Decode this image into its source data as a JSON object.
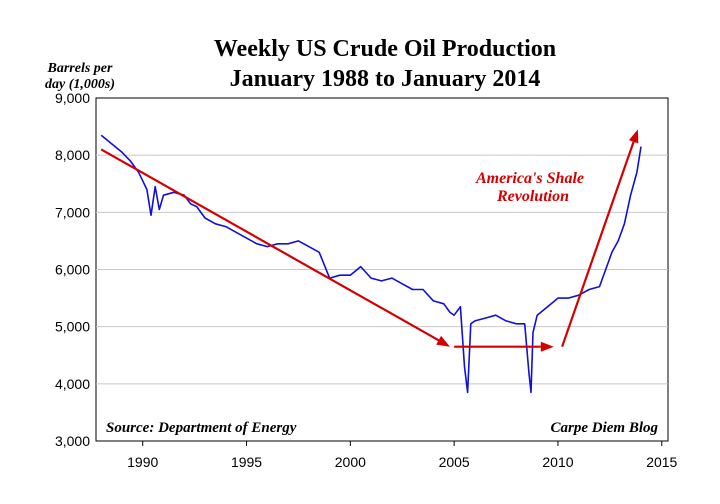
{
  "chart_data": {
    "type": "line",
    "title": "Weekly US Crude Oil Production",
    "subtitle": "January 1988 to January 2014",
    "ylabel_line1": "Barrels per",
    "ylabel_line2": "day (1,000s)",
    "ylim": [
      3000,
      9000
    ],
    "xlim": [
      1987.75,
      2015.3
    ],
    "yticks": [
      3000,
      4000,
      5000,
      6000,
      7000,
      8000,
      9000
    ],
    "ytick_labels": [
      "3,000",
      "4,000",
      "5,000",
      "6,000",
      "7,000",
      "8,000",
      "9,000"
    ],
    "xticks": [
      1990,
      1995,
      2000,
      2005,
      2010,
      2015
    ],
    "xtick_labels": [
      "1990",
      "1995",
      "2000",
      "2005",
      "2010",
      "2015"
    ],
    "grid": true,
    "series_color": "#1010d8",
    "annotation_color": "#d40000",
    "series": [
      {
        "x": [
          1988.0,
          1988.5,
          1989.0,
          1989.4,
          1989.8,
          1990.2,
          1990.4,
          1990.6,
          1990.8,
          1991.0,
          1991.5,
          1992.0,
          1992.3,
          1992.6,
          1993.0,
          1993.5,
          1994.0,
          1994.5,
          1995.0,
          1995.5,
          1996.0,
          1996.5,
          1997.0,
          1997.5,
          1998.0,
          1998.5,
          1999.0,
          1999.5,
          2000.0,
          2000.5,
          2001.0,
          2001.5,
          2002.0,
          2002.5,
          2003.0,
          2003.5,
          2004.0,
          2004.5,
          2004.8,
          2005.0,
          2005.3,
          2005.5,
          2005.65,
          2005.8,
          2006.0,
          2006.5,
          2007.0,
          2007.5,
          2008.0,
          2008.4,
          2008.6,
          2008.7,
          2008.8,
          2009.0,
          2009.5,
          2010.0,
          2010.5,
          2011.0,
          2011.5,
          2012.0,
          2012.3,
          2012.6,
          2012.9,
          2013.2,
          2013.5,
          2013.8,
          2014.0
        ],
        "y": [
          8350,
          8200,
          8050,
          7900,
          7700,
          7400,
          6950,
          7450,
          7050,
          7300,
          7350,
          7300,
          7150,
          7100,
          6900,
          6800,
          6750,
          6650,
          6550,
          6450,
          6400,
          6450,
          6450,
          6500,
          6400,
          6300,
          5850,
          5900,
          5900,
          6050,
          5850,
          5800,
          5850,
          5750,
          5650,
          5650,
          5450,
          5400,
          5250,
          5200,
          5350,
          4300,
          3850,
          5050,
          5100,
          5150,
          5200,
          5100,
          5050,
          5050,
          4200,
          3850,
          4900,
          5200,
          5350,
          5500,
          5500,
          5550,
          5650,
          5700,
          6000,
          6300,
          6500,
          6800,
          7300,
          7700,
          8150
        ]
      }
    ],
    "arrows": [
      {
        "from": [
          1988.0,
          8100
        ],
        "to": [
          2004.8,
          4650
        ]
      },
      {
        "from": [
          2005.0,
          4650
        ],
        "to": [
          2009.8,
          4650
        ]
      },
      {
        "from": [
          2010.2,
          4650
        ],
        "to": [
          2013.85,
          8450
        ]
      }
    ],
    "annotation_line1": "America's Shale",
    "annotation_line2": "Revolution",
    "source": "Source: Department of Energy",
    "credit": "Carpe Diem Blog"
  }
}
